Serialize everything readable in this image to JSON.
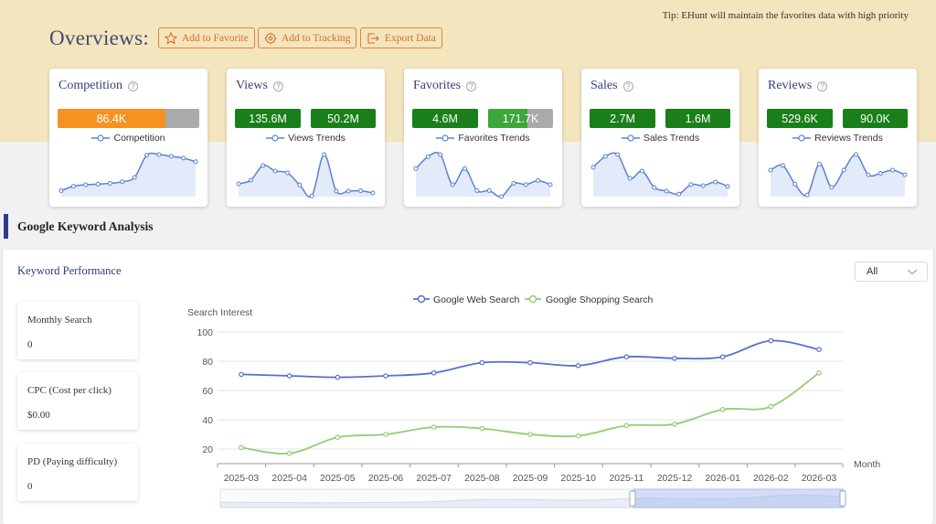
{
  "header": {
    "title": "Overviews:",
    "tip": "Tip: EHunt will maintain the favorites data with high priority",
    "buttons": {
      "favorite": "Add to Favorite",
      "tracking": "Add to Tracking",
      "export": "Export Data"
    }
  },
  "cards": {
    "competition": {
      "title": "Competition",
      "value": "86.4K",
      "fill_fraction": 0.76,
      "legend": "Competition",
      "trend": [
        2,
        3.5,
        4,
        4.2,
        4.5,
        5,
        6.5,
        14,
        14.2,
        13.6,
        13,
        11.8
      ]
    },
    "views": {
      "title": "Views",
      "value1": "135.6M",
      "value2": "50.2M",
      "legend": "Views Trends",
      "trend": [
        3.5,
        4.5,
        8.5,
        7,
        6.5,
        3.2,
        0.2,
        11.5,
        1.5,
        1.5,
        1.6,
        1
      ]
    },
    "favorites": {
      "title": "Favorites",
      "value1": "4.6M",
      "value2": "171.7K",
      "fill_fraction": 0.6,
      "legend": "Favorites Trends",
      "trend": [
        7,
        10,
        10.5,
        3,
        7,
        1.5,
        1.5,
        0,
        3.3,
        3,
        4,
        3
      ]
    },
    "sales": {
      "title": "Sales",
      "value1": "2.7M",
      "value2": "1.6M",
      "legend": "Sales Trends",
      "trend": [
        8,
        11,
        11.5,
        5,
        7,
        2.5,
        1.5,
        0.7,
        3.3,
        3,
        4,
        2.8
      ]
    },
    "reviews": {
      "title": "Reviews",
      "value1": "529.6K",
      "value2": "90.0K",
      "legend": "Reviews Trends",
      "trend": [
        8.5,
        10,
        4,
        0.5,
        10.5,
        3,
        8.5,
        13.5,
        7,
        7.5,
        8.5,
        7
      ]
    }
  },
  "section": {
    "title": "Google Keyword Analysis"
  },
  "panel": {
    "title": "Keyword Performance",
    "select_value": "All",
    "metrics": [
      {
        "label": "Monthly Search",
        "value": "0"
      },
      {
        "label": "CPC (Cost per click)",
        "value": "$0.00"
      },
      {
        "label": "PD (Paying difficulty)",
        "value": "0"
      }
    ]
  },
  "colors": {
    "accent_orange": "#f59222",
    "dark_green": "#1a7f1a",
    "light_green": "#3ea63a",
    "gray_bar": "#aaaaaa",
    "web_series": "#5a6fc8",
    "shopping_series": "#92cd75",
    "brand_navy": "#2b3a8a"
  },
  "chart_data": {
    "type": "line",
    "ylabel": "Search Interest",
    "xlabel": "Month",
    "ylim": [
      10,
      100
    ],
    "yticks": [
      20,
      40,
      60,
      80,
      100
    ],
    "x": [
      "2025-03",
      "2025-04",
      "2025-05",
      "2025-06",
      "2025-07",
      "2025-08",
      "2025-09",
      "2025-10",
      "2025-11",
      "2025-12",
      "2026-01",
      "2026-02",
      "2026-03"
    ],
    "series": [
      {
        "name": "Google Web Search",
        "values": [
          71,
          70,
          69,
          70,
          72,
          79,
          79,
          77,
          83,
          82,
          83,
          94,
          88
        ]
      },
      {
        "name": "Google Shopping Search",
        "values": [
          21,
          17,
          28,
          30,
          35,
          34,
          30,
          29,
          36,
          37,
          47,
          49,
          72
        ]
      }
    ],
    "grid": "horizontal",
    "legend": "top-center"
  }
}
